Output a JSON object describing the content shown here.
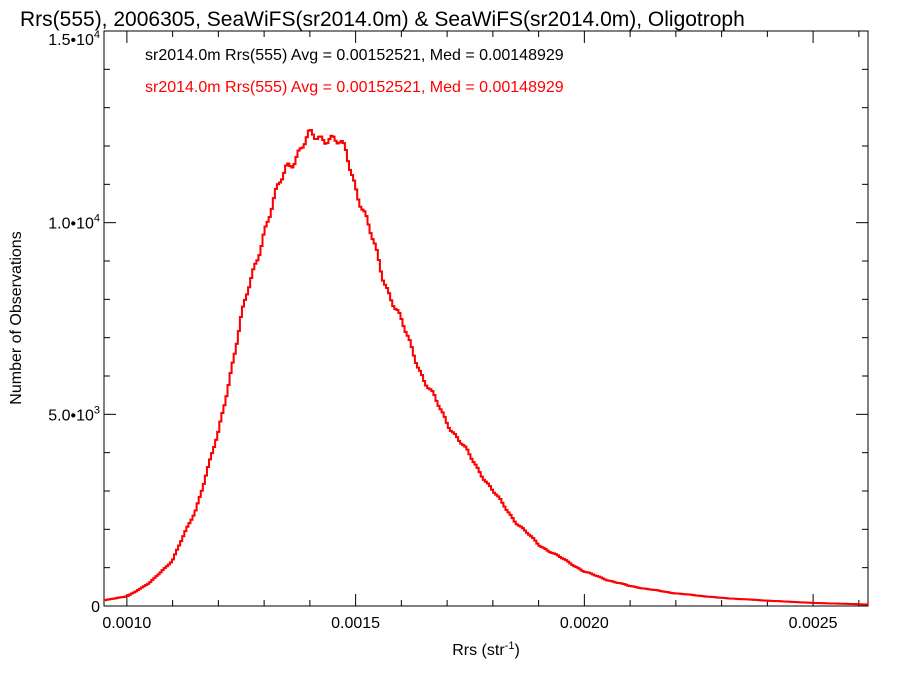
{
  "chart_data": {
    "type": "step-histogram",
    "title": "Rrs(555), 2006305, SeaWiFS(sr2014.0m) & SeaWiFS(sr2014.0m), Oligotroph",
    "xlabel": "Rrs (str",
    "xlabel_sup": "-1",
    "xlabel_close": ")",
    "ylabel": "Number of Observations",
    "xlim": [
      0.00095,
      0.00262
    ],
    "ylim": [
      0,
      15000
    ],
    "x_ticks": [
      {
        "value": 0.001,
        "label": "0.0010"
      },
      {
        "value": 0.0015,
        "label": "0.0015"
      },
      {
        "value": 0.002,
        "label": "0.0020"
      },
      {
        "value": 0.0025,
        "label": "0.0025"
      }
    ],
    "y_ticks": [
      {
        "value": 0,
        "mant": "0",
        "exp": ""
      },
      {
        "value": 5000,
        "mant": "5.0•10",
        "exp": "3"
      },
      {
        "value": 10000,
        "mant": "1.0•10",
        "exp": "4"
      },
      {
        "value": 15000,
        "mant": "1.5•10",
        "exp": "4"
      }
    ],
    "annotations": [
      {
        "text": "sr2014.0m Rrs(555) Avg = 0.00152521, Med = 0.00148929",
        "color": "#000000"
      },
      {
        "text": "sr2014.0m Rrs(555) Avg = 0.00152521, Med = 0.00148929",
        "color": "#ff0000"
      }
    ],
    "series": [
      {
        "color": "#000000",
        "x": [
          0.00095,
          0.001,
          0.00105,
          0.0011,
          0.00115,
          0.0012,
          0.00125,
          0.0013,
          0.00135,
          0.0014,
          0.00144,
          0.00148,
          0.00152,
          0.00156,
          0.0016,
          0.00165,
          0.0017,
          0.00175,
          0.0018,
          0.00185,
          0.0019,
          0.00195,
          0.002,
          0.00205,
          0.0021,
          0.00215,
          0.0022,
          0.0023,
          0.0024,
          0.0025,
          0.00262
        ],
        "values": [
          150,
          250,
          600,
          1200,
          2500,
          4500,
          7500,
          9800,
          11500,
          12200,
          12300,
          11800,
          10200,
          8600,
          7400,
          5900,
          4800,
          3900,
          3000,
          2200,
          1600,
          1250,
          900,
          680,
          520,
          420,
          330,
          210,
          140,
          80,
          40
        ]
      },
      {
        "color": "#ff0000",
        "x": [
          0.00095,
          0.001,
          0.00105,
          0.0011,
          0.00115,
          0.0012,
          0.00125,
          0.0013,
          0.00135,
          0.0014,
          0.00144,
          0.00148,
          0.00152,
          0.00156,
          0.0016,
          0.00165,
          0.0017,
          0.00175,
          0.0018,
          0.00185,
          0.0019,
          0.00195,
          0.002,
          0.00205,
          0.0021,
          0.00215,
          0.0022,
          0.0023,
          0.0024,
          0.0025,
          0.00262
        ],
        "values": [
          150,
          250,
          600,
          1200,
          2500,
          4500,
          7500,
          9800,
          11500,
          12200,
          12300,
          11800,
          10200,
          8600,
          7400,
          5900,
          4800,
          3900,
          3000,
          2200,
          1600,
          1250,
          900,
          680,
          520,
          420,
          330,
          210,
          140,
          80,
          40
        ]
      }
    ]
  }
}
